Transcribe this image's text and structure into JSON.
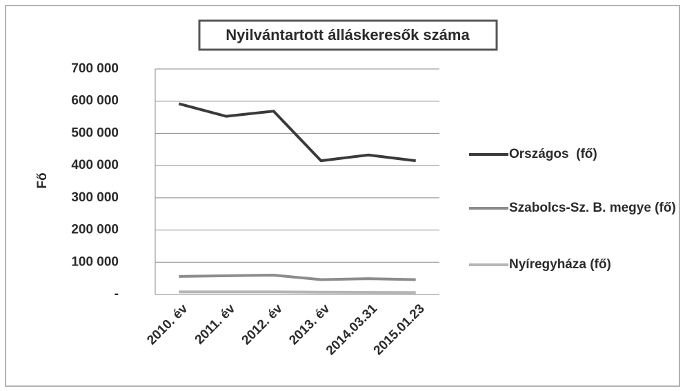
{
  "chart_data": {
    "type": "line",
    "title": "Nyilvántartott álláskeresők száma",
    "y_label": "Fő",
    "categories": [
      "2010. év",
      "2011. év",
      "2012. év",
      "2013. év",
      "2014.03.31",
      "2015.01.23"
    ],
    "series": [
      {
        "name": "Országos  (fő)",
        "color": "#3a3a3a",
        "values": [
          592000,
          553000,
          569000,
          415000,
          433000,
          415000
        ]
      },
      {
        "name": "Szabolcs-Sz. B. megye (fő)",
        "color": "#8c8c8c",
        "values": [
          56000,
          58000,
          60000,
          46000,
          49000,
          46000
        ]
      },
      {
        "name": "Nyíregyháza (fő)",
        "color": "#b5b5b5",
        "values": [
          8000,
          8000,
          8000,
          7000,
          6500,
          6000
        ]
      }
    ],
    "ylim": [
      0,
      700000
    ],
    "yticks": [
      {
        "value": 0,
        "label": "-"
      },
      {
        "value": 100000,
        "label": "100 000"
      },
      {
        "value": 200000,
        "label": "200 000"
      },
      {
        "value": 300000,
        "label": "300 000"
      },
      {
        "value": 400000,
        "label": "400 000"
      },
      {
        "value": 500000,
        "label": "500 000"
      },
      {
        "value": 600000,
        "label": "600 000"
      },
      {
        "value": 700000,
        "label": "700 000"
      }
    ],
    "grid": true
  }
}
